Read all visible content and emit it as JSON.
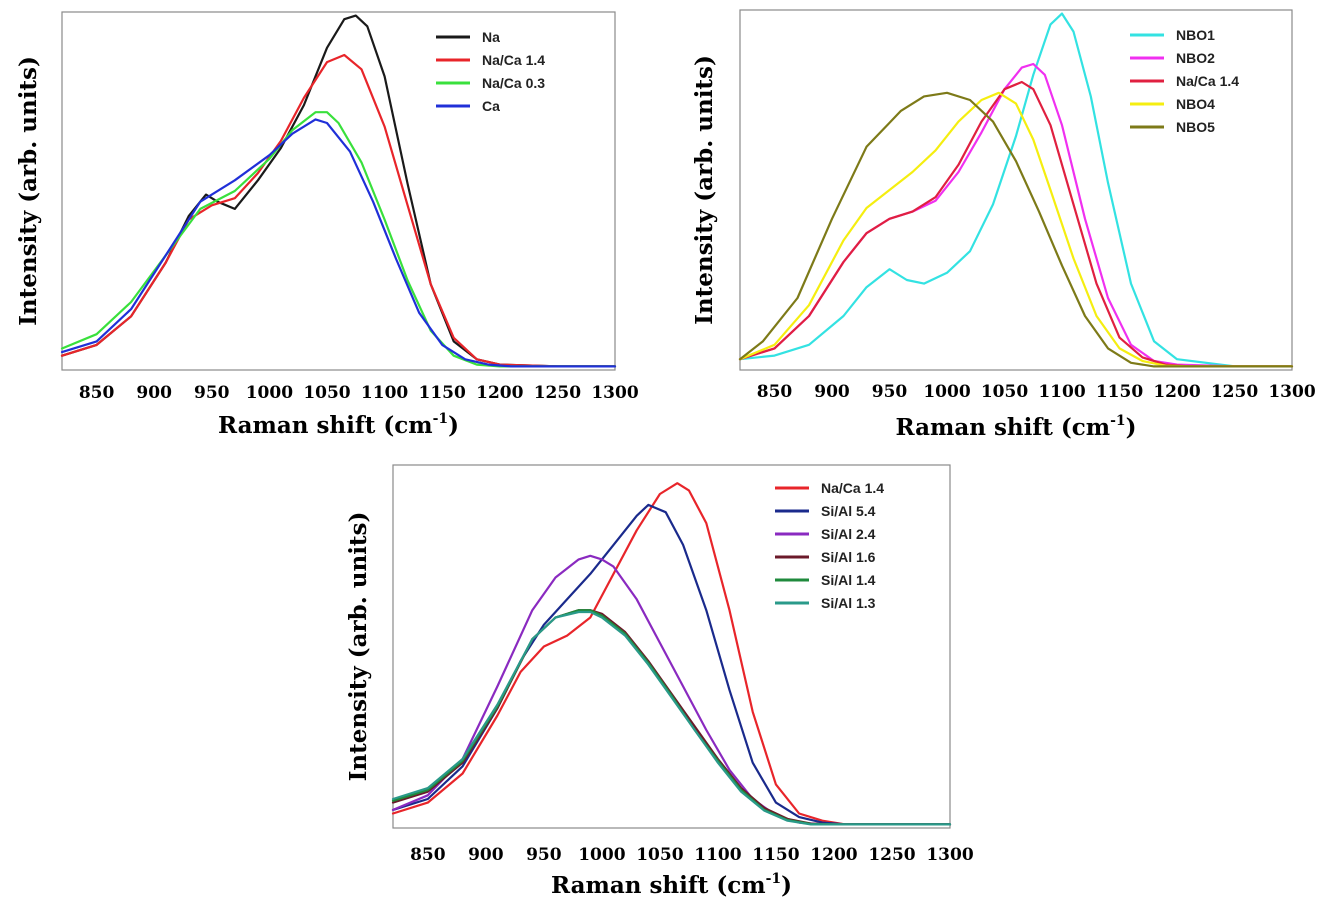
{
  "chart_data": [
    {
      "type": "line",
      "xlabel": "Raman shift (cm",
      "xlabel_sup": "-1",
      "xlabel_close": ")",
      "ylabel": "Intensity (arb. units)",
      "xlim": [
        820,
        1300
      ],
      "ylim": [
        0,
        1
      ],
      "xticks": [
        850,
        900,
        950,
        1000,
        1050,
        1100,
        1150,
        1200,
        1250,
        1300
      ],
      "grid": false,
      "legend_position": "top-right",
      "series": [
        {
          "name": "Na",
          "color": "#1a1a1a",
          "x": [
            820,
            850,
            880,
            910,
            930,
            945,
            955,
            970,
            990,
            1010,
            1030,
            1050,
            1065,
            1075,
            1085,
            1100,
            1120,
            1140,
            1160,
            1180,
            1200,
            1250,
            1300
          ],
          "y": [
            0.04,
            0.07,
            0.15,
            0.3,
            0.43,
            0.49,
            0.47,
            0.45,
            0.53,
            0.62,
            0.74,
            0.9,
            0.98,
            0.99,
            0.96,
            0.82,
            0.52,
            0.24,
            0.08,
            0.03,
            0.015,
            0.01,
            0.01
          ]
        },
        {
          "name": "Na/Ca 1.4",
          "color": "#e8252a",
          "x": [
            820,
            850,
            880,
            910,
            930,
            950,
            970,
            990,
            1010,
            1030,
            1050,
            1065,
            1080,
            1100,
            1120,
            1140,
            1160,
            1180,
            1200,
            1250,
            1300
          ],
          "y": [
            0.04,
            0.07,
            0.15,
            0.3,
            0.42,
            0.46,
            0.48,
            0.55,
            0.64,
            0.76,
            0.86,
            0.88,
            0.84,
            0.68,
            0.46,
            0.24,
            0.09,
            0.03,
            0.015,
            0.01,
            0.01
          ]
        },
        {
          "name": "Na/Ca 0.3",
          "color": "#39e03c",
          "x": [
            820,
            850,
            880,
            910,
            940,
            970,
            1000,
            1020,
            1040,
            1050,
            1060,
            1080,
            1100,
            1120,
            1140,
            1160,
            1180,
            1200,
            1250,
            1300
          ],
          "y": [
            0.06,
            0.1,
            0.19,
            0.32,
            0.45,
            0.5,
            0.59,
            0.67,
            0.72,
            0.72,
            0.69,
            0.58,
            0.42,
            0.25,
            0.11,
            0.04,
            0.015,
            0.01,
            0.01,
            0.01
          ]
        },
        {
          "name": "Ca",
          "color": "#2030d8",
          "x": [
            820,
            850,
            880,
            910,
            940,
            970,
            1000,
            1020,
            1040,
            1050,
            1070,
            1090,
            1110,
            1130,
            1150,
            1170,
            1190,
            1210,
            1250,
            1300
          ],
          "y": [
            0.05,
            0.08,
            0.17,
            0.32,
            0.47,
            0.53,
            0.6,
            0.66,
            0.7,
            0.69,
            0.61,
            0.47,
            0.31,
            0.16,
            0.07,
            0.03,
            0.015,
            0.01,
            0.01,
            0.01
          ]
        }
      ]
    },
    {
      "type": "line",
      "xlabel": "Raman shift (cm",
      "xlabel_sup": "-1",
      "xlabel_close": ")",
      "ylabel": "Intensity (arb. units)",
      "xlim": [
        820,
        1300
      ],
      "ylim": [
        0,
        1
      ],
      "xticks": [
        850,
        900,
        950,
        1000,
        1050,
        1100,
        1150,
        1200,
        1250,
        1300
      ],
      "grid": false,
      "legend_position": "top-right",
      "series": [
        {
          "name": "NBO1",
          "color": "#33e2e2",
          "x": [
            820,
            850,
            880,
            910,
            930,
            950,
            965,
            980,
            1000,
            1020,
            1040,
            1060,
            1075,
            1090,
            1100,
            1110,
            1125,
            1140,
            1160,
            1180,
            1200,
            1250,
            1300
          ],
          "y": [
            0.03,
            0.04,
            0.07,
            0.15,
            0.23,
            0.28,
            0.25,
            0.24,
            0.27,
            0.33,
            0.46,
            0.65,
            0.82,
            0.96,
            0.99,
            0.94,
            0.76,
            0.52,
            0.24,
            0.08,
            0.03,
            0.01,
            0.01
          ]
        },
        {
          "name": "NBO2",
          "color": "#f030f0",
          "x": [
            820,
            850,
            880,
            910,
            930,
            950,
            970,
            990,
            1010,
            1030,
            1050,
            1065,
            1075,
            1085,
            1100,
            1120,
            1140,
            1160,
            1180,
            1200,
            1250,
            1300
          ],
          "y": [
            0.03,
            0.06,
            0.15,
            0.3,
            0.38,
            0.42,
            0.44,
            0.47,
            0.55,
            0.66,
            0.78,
            0.84,
            0.85,
            0.82,
            0.68,
            0.42,
            0.2,
            0.07,
            0.025,
            0.015,
            0.01,
            0.01
          ]
        },
        {
          "name": "Na/Ca 1.4",
          "color": "#e02040",
          "x": [
            820,
            850,
            880,
            910,
            930,
            950,
            970,
            990,
            1010,
            1030,
            1050,
            1065,
            1075,
            1090,
            1110,
            1130,
            1150,
            1170,
            1190,
            1210,
            1250,
            1300
          ],
          "y": [
            0.03,
            0.06,
            0.15,
            0.3,
            0.38,
            0.42,
            0.44,
            0.48,
            0.57,
            0.69,
            0.78,
            0.8,
            0.78,
            0.68,
            0.46,
            0.24,
            0.09,
            0.035,
            0.015,
            0.01,
            0.01,
            0.01
          ]
        },
        {
          "name": "NBO4",
          "color": "#f5ee10",
          "x": [
            820,
            850,
            880,
            910,
            930,
            950,
            970,
            990,
            1010,
            1030,
            1045,
            1060,
            1075,
            1090,
            1110,
            1130,
            1150,
            1170,
            1190,
            1210,
            1250,
            1300
          ],
          "y": [
            0.03,
            0.07,
            0.18,
            0.36,
            0.45,
            0.5,
            0.55,
            0.61,
            0.69,
            0.75,
            0.77,
            0.74,
            0.64,
            0.5,
            0.31,
            0.15,
            0.06,
            0.025,
            0.012,
            0.01,
            0.01,
            0.01
          ]
        },
        {
          "name": "NBO5",
          "color": "#7d7a18",
          "x": [
            820,
            840,
            870,
            900,
            930,
            960,
            980,
            1000,
            1020,
            1040,
            1060,
            1080,
            1100,
            1120,
            1140,
            1160,
            1180,
            1200,
            1250,
            1300
          ],
          "y": [
            0.03,
            0.08,
            0.2,
            0.42,
            0.62,
            0.72,
            0.76,
            0.77,
            0.75,
            0.69,
            0.58,
            0.44,
            0.29,
            0.15,
            0.06,
            0.02,
            0.01,
            0.01,
            0.01,
            0.01
          ]
        }
      ]
    },
    {
      "type": "line",
      "xlabel": "Raman shift (cm",
      "xlabel_sup": "-1",
      "xlabel_close": ")",
      "ylabel": "Intensity (arb. units)",
      "xlim": [
        820,
        1300
      ],
      "ylim": [
        0,
        1
      ],
      "xticks": [
        850,
        900,
        950,
        1000,
        1050,
        1100,
        1150,
        1200,
        1250,
        1300
      ],
      "grid": false,
      "legend_position": "top-right",
      "series": [
        {
          "name": "Na/Ca 1.4",
          "color": "#e8252a",
          "x": [
            820,
            850,
            880,
            910,
            930,
            950,
            970,
            990,
            1010,
            1030,
            1050,
            1065,
            1075,
            1090,
            1110,
            1130,
            1150,
            1170,
            1190,
            1210,
            1250,
            1300
          ],
          "y": [
            0.04,
            0.07,
            0.15,
            0.31,
            0.43,
            0.5,
            0.53,
            0.58,
            0.7,
            0.82,
            0.92,
            0.95,
            0.93,
            0.84,
            0.6,
            0.32,
            0.12,
            0.04,
            0.02,
            0.01,
            0.01,
            0.01
          ]
        },
        {
          "name": "Si/Al 5.4",
          "color": "#1a2a8c",
          "x": [
            820,
            850,
            880,
            910,
            930,
            950,
            970,
            990,
            1010,
            1030,
            1040,
            1055,
            1070,
            1090,
            1110,
            1130,
            1150,
            1170,
            1190,
            1210,
            1250,
            1300
          ],
          "y": [
            0.05,
            0.08,
            0.17,
            0.33,
            0.46,
            0.56,
            0.63,
            0.7,
            0.78,
            0.86,
            0.89,
            0.87,
            0.78,
            0.6,
            0.38,
            0.18,
            0.07,
            0.03,
            0.015,
            0.01,
            0.01,
            0.01
          ]
        },
        {
          "name": "Si/Al 2.4",
          "color": "#8a2ac0",
          "x": [
            820,
            850,
            880,
            910,
            940,
            960,
            980,
            990,
            1000,
            1010,
            1030,
            1050,
            1070,
            1090,
            1110,
            1130,
            1150,
            1170,
            1190,
            1210,
            1250,
            1300
          ],
          "y": [
            0.05,
            0.09,
            0.19,
            0.39,
            0.6,
            0.69,
            0.74,
            0.75,
            0.74,
            0.72,
            0.63,
            0.51,
            0.39,
            0.27,
            0.16,
            0.08,
            0.035,
            0.015,
            0.01,
            0.01,
            0.01,
            0.01
          ]
        },
        {
          "name": "Si/Al 1.6",
          "color": "#6b1a2a",
          "x": [
            820,
            850,
            880,
            910,
            940,
            960,
            980,
            990,
            1000,
            1020,
            1040,
            1060,
            1080,
            1100,
            1120,
            1140,
            1160,
            1180,
            1200,
            1250,
            1300
          ],
          "y": [
            0.07,
            0.1,
            0.18,
            0.33,
            0.52,
            0.58,
            0.6,
            0.6,
            0.59,
            0.54,
            0.46,
            0.37,
            0.28,
            0.19,
            0.11,
            0.055,
            0.025,
            0.012,
            0.01,
            0.01,
            0.01
          ]
        },
        {
          "name": "Si/Al 1.4",
          "color": "#1f8a3c",
          "x": [
            820,
            850,
            880,
            910,
            940,
            960,
            980,
            990,
            1000,
            1020,
            1040,
            1060,
            1080,
            1100,
            1120,
            1140,
            1160,
            1180,
            1200,
            1250,
            1300
          ],
          "y": [
            0.075,
            0.105,
            0.185,
            0.335,
            0.52,
            0.58,
            0.6,
            0.6,
            0.585,
            0.535,
            0.455,
            0.365,
            0.27,
            0.185,
            0.105,
            0.05,
            0.022,
            0.011,
            0.01,
            0.01,
            0.01
          ]
        },
        {
          "name": "Si/Al 1.3",
          "color": "#2a9a8a",
          "x": [
            820,
            850,
            880,
            910,
            940,
            960,
            980,
            990,
            1000,
            1020,
            1040,
            1060,
            1080,
            1100,
            1120,
            1140,
            1160,
            1180,
            1200,
            1250,
            1300
          ],
          "y": [
            0.08,
            0.11,
            0.19,
            0.34,
            0.52,
            0.58,
            0.595,
            0.595,
            0.58,
            0.53,
            0.45,
            0.36,
            0.27,
            0.18,
            0.1,
            0.048,
            0.02,
            0.01,
            0.01,
            0.01,
            0.01
          ]
        }
      ]
    }
  ]
}
